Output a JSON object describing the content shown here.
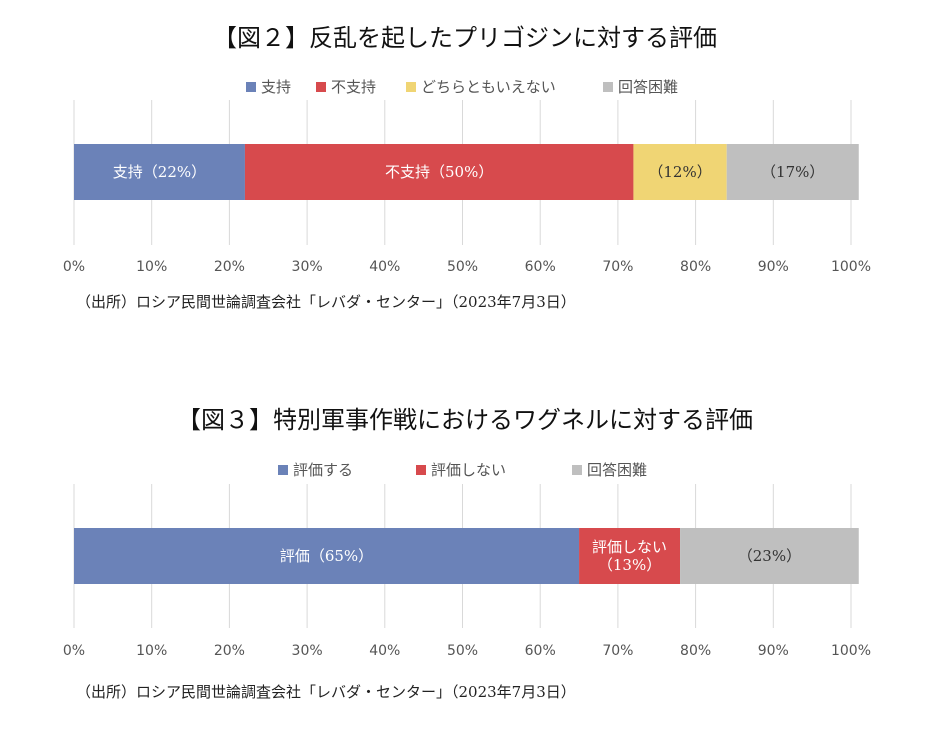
{
  "chart_data": [
    {
      "type": "bar",
      "orientation": "horizontal",
      "stacked": true,
      "title": "【図２】反乱を起したプリゴジンに対する評価",
      "categories": [
        ""
      ],
      "series": [
        {
          "name": "支持",
          "values": [
            22
          ],
          "color": "#6b82b8",
          "label": "支持（22%）",
          "label_color": "#ffffff"
        },
        {
          "name": "不支持",
          "values": [
            50
          ],
          "color": "#d74a4d",
          "label": "不支持（50%）",
          "label_color": "#ffffff"
        },
        {
          "name": "どちらともいえない",
          "values": [
            12
          ],
          "color": "#f0d574",
          "label": "（12%）",
          "label_color": "#333333"
        },
        {
          "name": "回答困難",
          "values": [
            17
          ],
          "color": "#bfbfbf",
          "label": "（17%）",
          "label_color": "#333333"
        }
      ],
      "xlim": [
        0,
        100
      ],
      "x_ticks": [
        "0%",
        "10%",
        "20%",
        "30%",
        "40%",
        "50%",
        "60%",
        "70%",
        "80%",
        "90%",
        "100%"
      ],
      "grid": true,
      "legend_position": "top",
      "source": "（出所）ロシア民間世論調査会社「レバダ・センター」（2023年7月3日）"
    },
    {
      "type": "bar",
      "orientation": "horizontal",
      "stacked": true,
      "title": "【図３】特別軍事作戦におけるワグネルに対する評価",
      "categories": [
        ""
      ],
      "series": [
        {
          "name": "評価する",
          "values": [
            65
          ],
          "color": "#6b82b8",
          "label": "評価（65%）",
          "label_color": "#ffffff"
        },
        {
          "name": "評価しない",
          "values": [
            13
          ],
          "color": "#d74a4d",
          "label": "評価しない\n（13%）",
          "label_color": "#ffffff"
        },
        {
          "name": "回答困難",
          "values": [
            23
          ],
          "color": "#bfbfbf",
          "label": "（23%）",
          "label_color": "#333333"
        }
      ],
      "xlim": [
        0,
        100
      ],
      "x_ticks": [
        "0%",
        "10%",
        "20%",
        "30%",
        "40%",
        "50%",
        "60%",
        "70%",
        "80%",
        "90%",
        "100%"
      ],
      "grid": true,
      "legend_position": "top",
      "source": "（出所）ロシア民間世論調査会社「レバダ・センター」（2023年7月3日）"
    }
  ]
}
